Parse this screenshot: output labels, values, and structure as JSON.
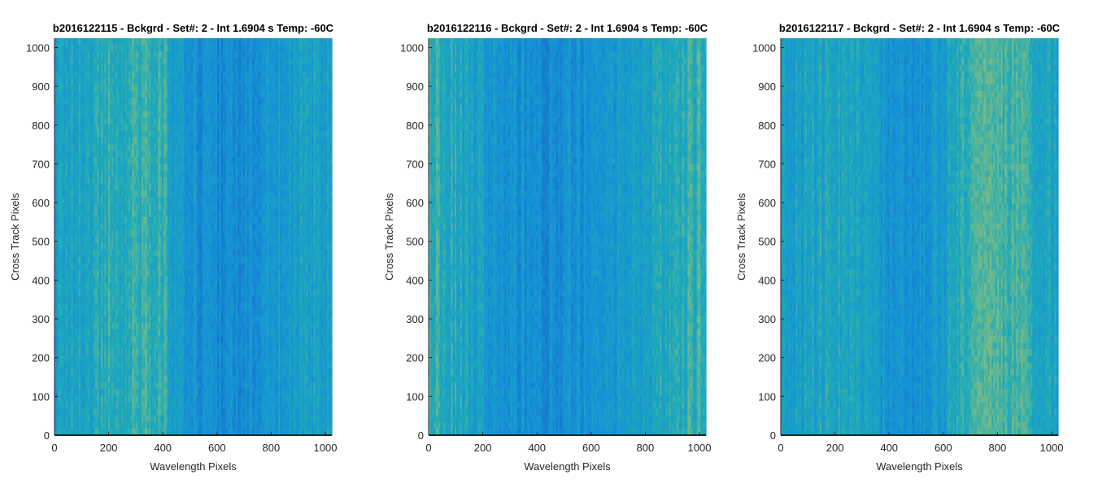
{
  "chart_data": [
    {
      "type": "heatmap",
      "title": "b2016122115 - Bckgrd - Set#: 2 - Int 1.6904 s Temp: -60C",
      "xlabel": "Wavelength Pixels",
      "ylabel": "Cross Track Pixels",
      "xlim": [
        0,
        1024
      ],
      "ylim": [
        0,
        1024
      ],
      "xticks": [
        0,
        200,
        400,
        600,
        800,
        1000
      ],
      "yticks": [
        0,
        100,
        200,
        300,
        400,
        500,
        600,
        700,
        800,
        900,
        1000
      ],
      "grid": false,
      "colormap": "parula",
      "column_profile": [
        {
          "x": 0,
          "value": 0.45
        },
        {
          "x": 100,
          "value": 0.5
        },
        {
          "x": 200,
          "value": 0.55
        },
        {
          "x": 300,
          "value": 0.6
        },
        {
          "x": 380,
          "value": 0.62
        },
        {
          "x": 450,
          "value": 0.45
        },
        {
          "x": 500,
          "value": 0.3
        },
        {
          "x": 600,
          "value": 0.22
        },
        {
          "x": 700,
          "value": 0.25
        },
        {
          "x": 800,
          "value": 0.35
        },
        {
          "x": 900,
          "value": 0.42
        },
        {
          "x": 1024,
          "value": 0.45
        }
      ]
    },
    {
      "type": "heatmap",
      "title": "b2016122116 - Bckgrd - Set#: 2 - Int 1.6904 s Temp: -60C",
      "xlabel": "Wavelength Pixels",
      "ylabel": "Cross Track Pixels",
      "xlim": [
        0,
        1024
      ],
      "ylim": [
        0,
        1024
      ],
      "xticks": [
        0,
        200,
        400,
        600,
        800,
        1000
      ],
      "yticks": [
        0,
        100,
        200,
        300,
        400,
        500,
        600,
        700,
        800,
        900,
        1000
      ],
      "grid": false,
      "colormap": "parula",
      "column_profile": [
        {
          "x": 0,
          "value": 0.62
        },
        {
          "x": 100,
          "value": 0.52
        },
        {
          "x": 200,
          "value": 0.4
        },
        {
          "x": 300,
          "value": 0.3
        },
        {
          "x": 400,
          "value": 0.25
        },
        {
          "x": 500,
          "value": 0.27
        },
        {
          "x": 600,
          "value": 0.3
        },
        {
          "x": 700,
          "value": 0.38
        },
        {
          "x": 800,
          "value": 0.45
        },
        {
          "x": 900,
          "value": 0.55
        },
        {
          "x": 1024,
          "value": 0.62
        }
      ]
    },
    {
      "type": "heatmap",
      "title": "b2016122117 - Bckgrd - Set#: 2 - Int 1.6904 s Temp: -60C",
      "xlabel": "Wavelength Pixels",
      "ylabel": "Cross Track Pixels",
      "xlim": [
        0,
        1024
      ],
      "ylim": [
        0,
        1024
      ],
      "xticks": [
        0,
        200,
        400,
        600,
        800,
        1000
      ],
      "yticks": [
        0,
        100,
        200,
        300,
        400,
        500,
        600,
        700,
        800,
        900,
        1000
      ],
      "grid": false,
      "colormap": "parula",
      "column_profile": [
        {
          "x": 0,
          "value": 0.4
        },
        {
          "x": 100,
          "value": 0.45
        },
        {
          "x": 200,
          "value": 0.5
        },
        {
          "x": 300,
          "value": 0.45
        },
        {
          "x": 400,
          "value": 0.35
        },
        {
          "x": 500,
          "value": 0.3
        },
        {
          "x": 600,
          "value": 0.4
        },
        {
          "x": 650,
          "value": 0.55
        },
        {
          "x": 750,
          "value": 0.68
        },
        {
          "x": 850,
          "value": 0.65
        },
        {
          "x": 950,
          "value": 0.55
        },
        {
          "x": 1024,
          "value": 0.5
        }
      ]
    }
  ]
}
